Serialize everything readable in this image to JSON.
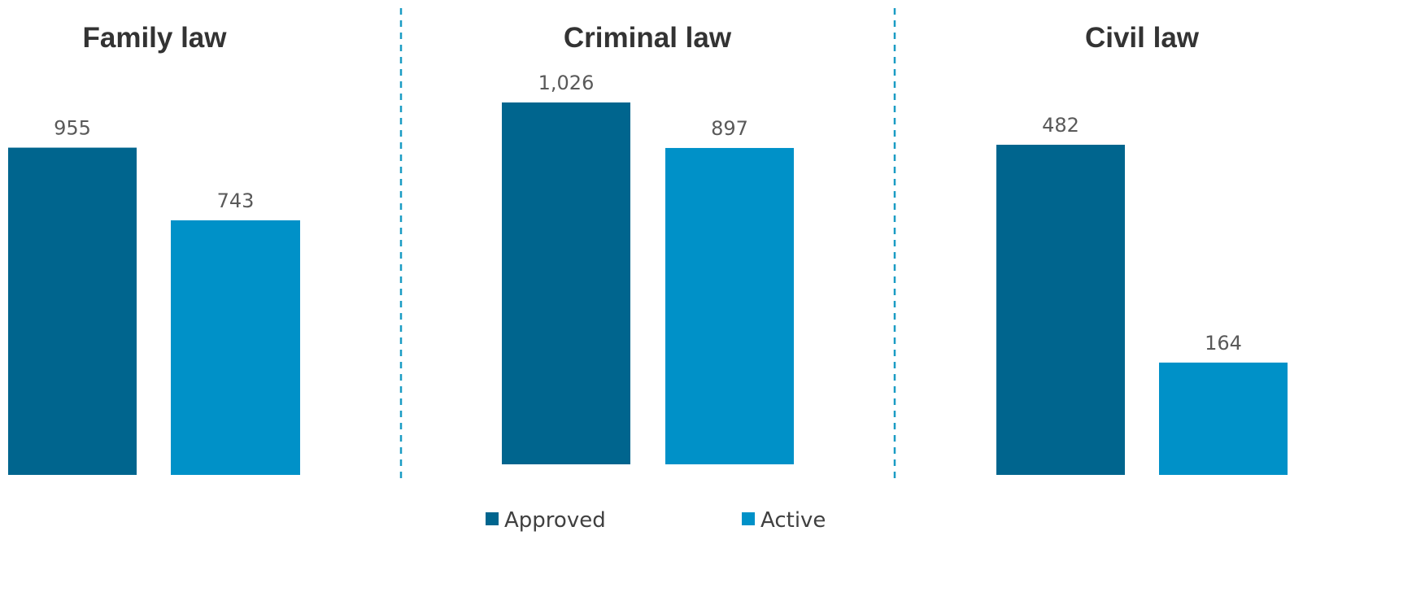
{
  "chart_data": [
    {
      "type": "bar",
      "title": "Family law",
      "categories": [
        "Approved",
        "Active"
      ],
      "values": [
        955,
        743
      ],
      "value_labels": [
        "955",
        "743"
      ]
    },
    {
      "type": "bar",
      "title": "Criminal law",
      "categories": [
        "Approved",
        "Active"
      ],
      "values": [
        1026,
        897
      ],
      "value_labels": [
        "1,026",
        "897"
      ]
    },
    {
      "type": "bar",
      "title": "Civil law",
      "categories": [
        "Approved",
        "Active"
      ],
      "values": [
        482,
        164
      ],
      "value_labels": [
        "482",
        "164"
      ]
    }
  ],
  "legend": {
    "placement": "bottom-center",
    "items": [
      {
        "label": "Approved",
        "color": "#00658E"
      },
      {
        "label": "Active",
        "color": "#0091C8"
      }
    ]
  },
  "colors": {
    "approved": "#00658E",
    "active": "#0091C8",
    "divider": "#1A9CC4",
    "title_text": "#333333",
    "label_text": "#595959"
  }
}
